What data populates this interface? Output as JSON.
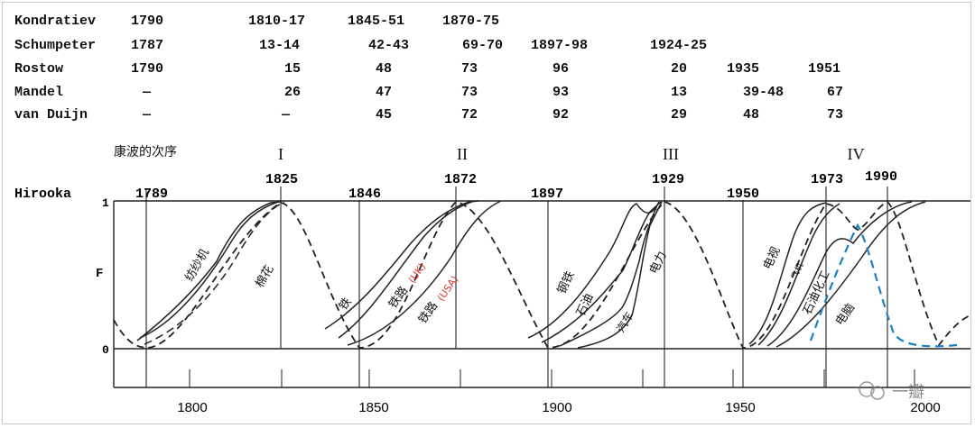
{
  "table": {
    "rows": [
      {
        "name": "Kondratiev",
        "cells": [
          "1790",
          "1810-17",
          "1845-51",
          "1870-75"
        ]
      },
      {
        "name": "Schumpeter",
        "cells": [
          "1787",
          "13-14",
          "42-43",
          "69-70",
          "1897-98",
          "1924-25"
        ]
      },
      {
        "name": "Rostow",
        "cells": [
          "1790",
          "15",
          "48",
          "73",
          "96",
          "20",
          "1935",
          "1951"
        ]
      },
      {
        "name": "Mandel",
        "cells": [
          "—",
          "26",
          "47",
          "73",
          "93",
          "13",
          "39-48",
          "67"
        ]
      },
      {
        "name": "van Duijn",
        "cells": [
          "—",
          "—",
          "45",
          "72",
          "92",
          "29",
          "48",
          "73"
        ]
      }
    ]
  },
  "chart": {
    "wave_heading": "康波的次序",
    "wave_numerals": [
      "I",
      "II",
      "III",
      "IV"
    ],
    "peak_years": [
      "1825",
      "1872",
      "1929",
      "1973",
      "1990"
    ],
    "hirooka_label": "Hirooka",
    "trough_years": [
      "1789",
      "1846",
      "1897",
      "1950"
    ],
    "y_label": "F",
    "y_ticks": [
      "1",
      "0"
    ],
    "x_ticks": [
      "1800",
      "1850",
      "1900",
      "1950",
      "2000"
    ],
    "curve_labels": [
      {
        "text": "纺纱机",
        "color": "#111111"
      },
      {
        "text": "棉花",
        "color": "#111111"
      },
      {
        "text": "铁",
        "color": "#111111"
      },
      {
        "text": "铁路",
        "color": "#111111"
      },
      {
        "text": "(UK)",
        "color": "#d9342b"
      },
      {
        "text": "铁路",
        "color": "#111111"
      },
      {
        "text": "(USA)",
        "color": "#d9342b"
      },
      {
        "text": "钢铁",
        "color": "#111111"
      },
      {
        "text": "石油",
        "color": "#111111"
      },
      {
        "text": "汽车",
        "color": "#111111"
      },
      {
        "text": "电力",
        "color": "#111111"
      },
      {
        "text": "电视",
        "color": "#111111"
      },
      {
        "text": "飞机",
        "color": "#111111"
      },
      {
        "text": "石油化工",
        "color": "#111111"
      },
      {
        "text": "电脑",
        "color": "#111111"
      }
    ],
    "blue_dash_color": "#1a7fc4",
    "watermark_text": "一瓣"
  }
}
